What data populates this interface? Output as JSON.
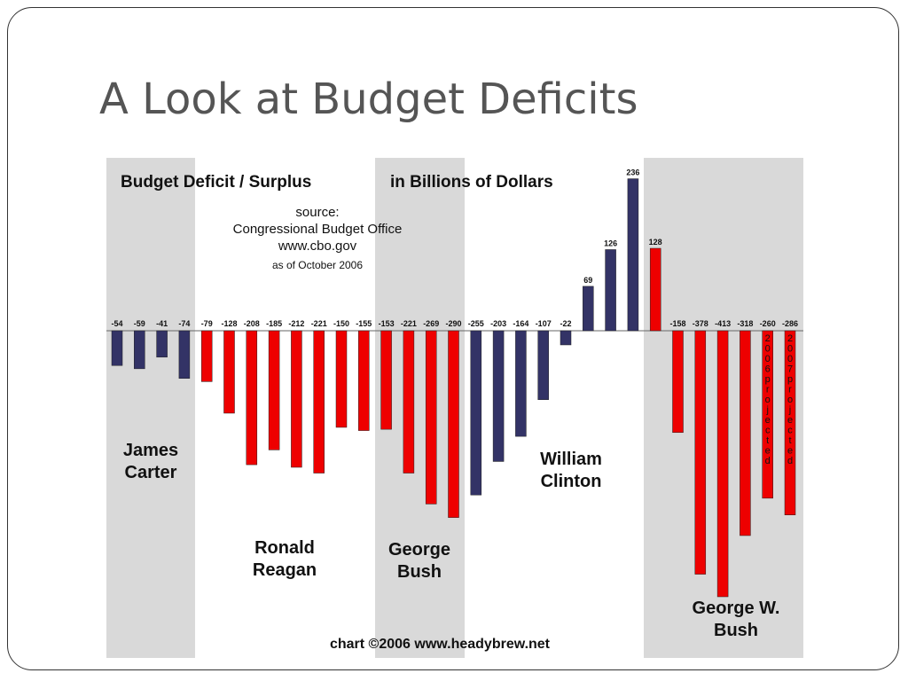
{
  "slide": {
    "title": "A Look at Budget Deficits"
  },
  "chart_data": {
    "type": "bar",
    "title": "Budget Deficit / Surplus",
    "title_suffix": "in Billions of Dollars",
    "source_label": "source:",
    "source_org": "Congressional Budget Office",
    "source_url": "www.cbo.gov",
    "as_of": "as of October 2006",
    "credit": "chart ©2006 www.headybrew.net",
    "values": [
      -54,
      -59,
      -41,
      -74,
      -79,
      -128,
      -208,
      -185,
      -212,
      -221,
      -150,
      -155,
      -153,
      -221,
      -269,
      -290,
      -255,
      -203,
      -164,
      -107,
      -22,
      69,
      126,
      236,
      128,
      -158,
      -378,
      -413,
      -318,
      -260,
      -286
    ],
    "bar_colors": [
      "#333366",
      "#333366",
      "#333366",
      "#333366",
      "#ee0000",
      "#ee0000",
      "#ee0000",
      "#ee0000",
      "#ee0000",
      "#ee0000",
      "#ee0000",
      "#ee0000",
      "#ee0000",
      "#ee0000",
      "#ee0000",
      "#ee0000",
      "#333366",
      "#333366",
      "#333366",
      "#333366",
      "#333366",
      "#333366",
      "#333366",
      "#333366",
      "#ee0000",
      "#ee0000",
      "#ee0000",
      "#ee0000",
      "#ee0000",
      "#ee0000",
      "#ee0000"
    ],
    "bar_annotations": [
      {
        "index": 29,
        "text": "2006 projected"
      },
      {
        "index": 30,
        "text": "2007 projected"
      }
    ],
    "presidents": [
      {
        "line1": "James",
        "line2": "Carter",
        "shaded": true
      },
      {
        "line1": "Ronald",
        "line2": "Reagan",
        "shaded": false
      },
      {
        "line1": "George",
        "line2": "Bush",
        "shaded": true
      },
      {
        "line1": "William",
        "line2": "Clinton",
        "shaded": false
      },
      {
        "line1": "George W.",
        "line2": "Bush",
        "shaded": true
      }
    ],
    "colors": {
      "red": "#ee0000",
      "navy": "#333366",
      "shade": "#d9d9d9"
    }
  }
}
